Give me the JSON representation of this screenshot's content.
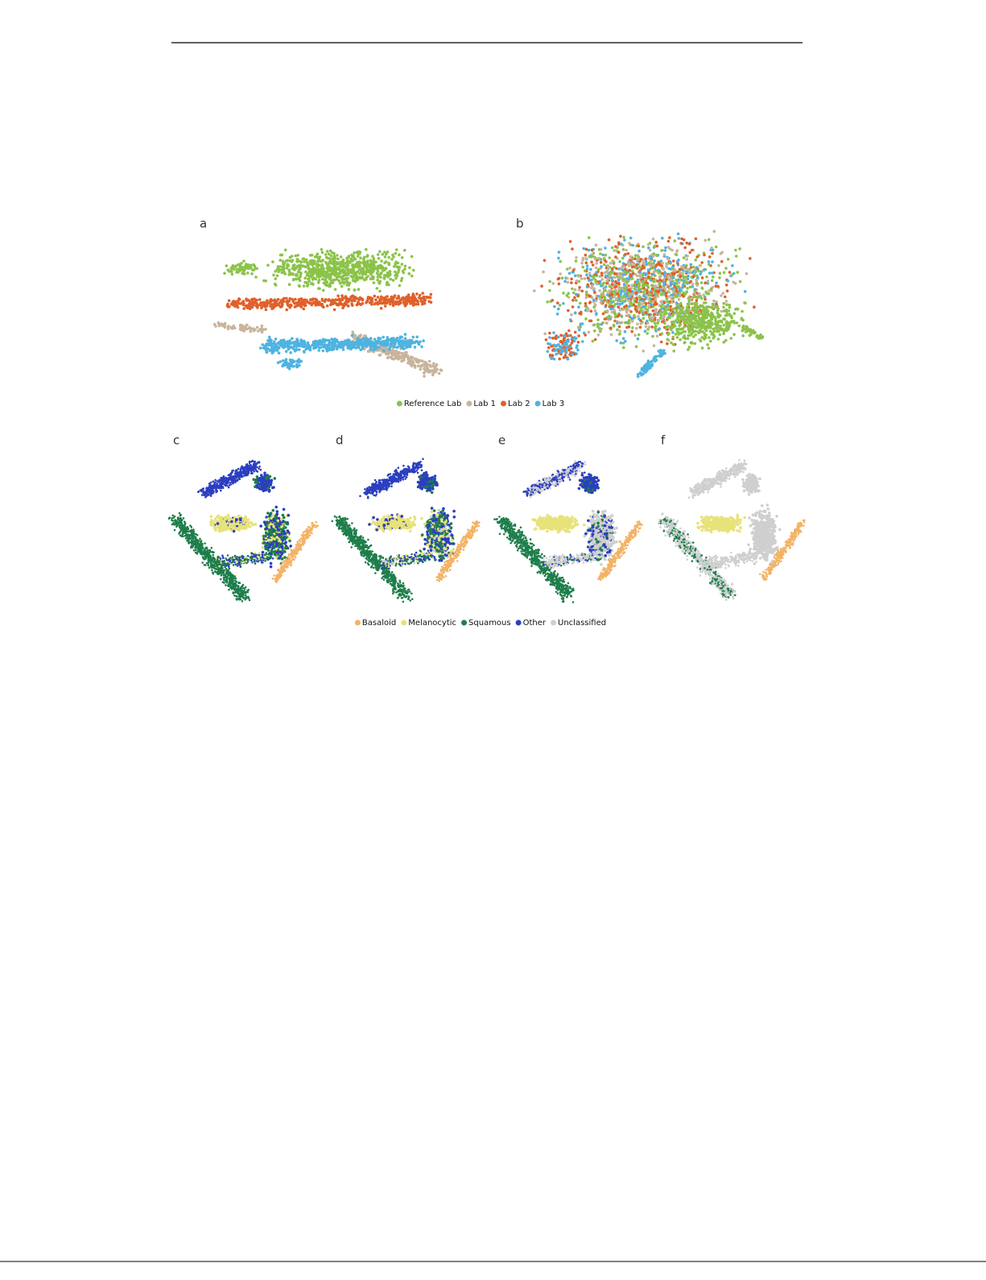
{
  "figure": {
    "top_panels": [
      {
        "label": "a"
      },
      {
        "label": "b"
      }
    ],
    "legend_top": [
      {
        "name": "Reference Lab",
        "color": "#8bc34a"
      },
      {
        "name": "Lab 1",
        "color": "#c8b49c"
      },
      {
        "name": "Lab 2",
        "color": "#e0602a"
      },
      {
        "name": "Lab 3",
        "color": "#4fb3e0"
      }
    ],
    "bottom_panels": [
      {
        "label": "c"
      },
      {
        "label": "d"
      },
      {
        "label": "e"
      },
      {
        "label": "f"
      }
    ],
    "legend_bottom": [
      {
        "name": "Basaloid",
        "color": "#f3b366"
      },
      {
        "name": "Melanocytic",
        "color": "#e8e27a"
      },
      {
        "name": "Squamous",
        "color": "#1e7e4a"
      },
      {
        "name": "Other",
        "color": "#2b3fbf"
      },
      {
        "name": "Unclassified",
        "color": "#cfcfcf"
      }
    ]
  }
}
